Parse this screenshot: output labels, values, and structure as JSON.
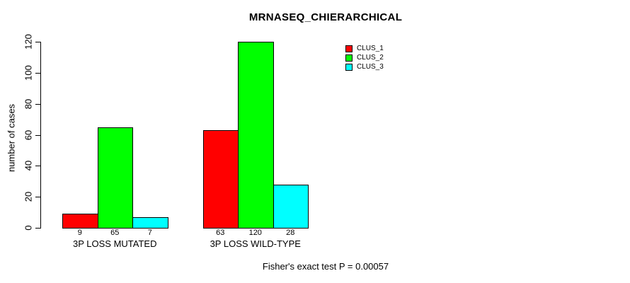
{
  "chart_data": {
    "type": "bar",
    "title": "MRNASEQ_CHIERARCHICAL",
    "ylabel": "number of cases",
    "xlabel": "",
    "ylim": [
      0,
      120
    ],
    "yticks": [
      0,
      20,
      40,
      60,
      80,
      100,
      120
    ],
    "grid": false,
    "legend_position": "top-right",
    "categories": [
      "3P LOSS MUTATED",
      "3P LOSS WILD-TYPE"
    ],
    "series": [
      {
        "name": "CLUS_1",
        "color": "#ff0000",
        "values": [
          9,
          63
        ]
      },
      {
        "name": "CLUS_2",
        "color": "#00ff00",
        "values": [
          65,
          120
        ]
      },
      {
        "name": "CLUS_3",
        "color": "#00ffff",
        "values": [
          7,
          28
        ]
      }
    ],
    "bar_value_labels": [
      [
        9,
        65,
        7
      ],
      [
        63,
        120,
        28
      ]
    ],
    "annotation": "Fisher's exact test P = 0.00057"
  },
  "colors": {
    "axis": "#000000",
    "text": "#000000",
    "background": "#ffffff"
  }
}
